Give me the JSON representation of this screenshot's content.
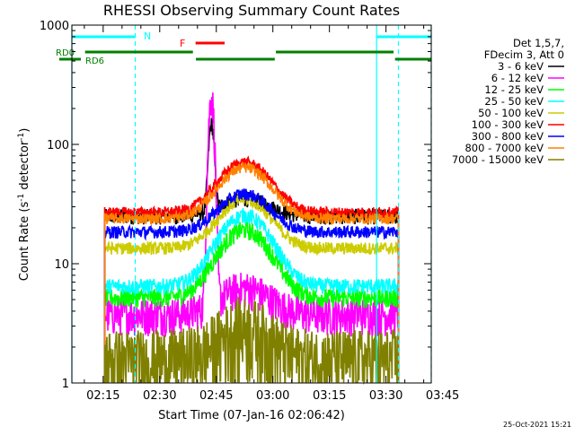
{
  "chart_data": {
    "type": "line",
    "title": "RHESSI Observing Summary Count Rates",
    "xlabel": "Start Time (07-Jan-16 02:06:42)",
    "ylabel_main": "Count Rate (s",
    "ylabel_sup1": "-1",
    "ylabel_mid": " detector",
    "ylabel_sup2": "-1",
    "ylabel_end": ")",
    "yscale": "log",
    "ylim": [
      1,
      1000
    ],
    "xlim_minutes": [
      6.7,
      102
    ],
    "xtick_minutes": [
      15,
      30,
      45,
      60,
      75,
      90,
      105
    ],
    "xtick_labels": [
      "02:15",
      "02:30",
      "02:45",
      "03:00",
      "03:15",
      "03:30",
      "03:45"
    ],
    "ytick_values": [
      1,
      10,
      100,
      1000
    ],
    "ytick_labels": [
      "1",
      "10",
      "100",
      "1000"
    ],
    "legend_header": [
      "Det 1,5,7,",
      "FDecim 3, Att 0"
    ],
    "series": [
      {
        "name": "3 - 6 keV",
        "color": "#000000",
        "base": 25,
        "flare": 10,
        "spike": 120,
        "noise": 0.05
      },
      {
        "name": "6 - 12 keV",
        "color": "#ff00ff",
        "base": 3.8,
        "flare": 2.5,
        "spike": 250,
        "noise": 0.12
      },
      {
        "name": "12 - 25 keV",
        "color": "#00ff00",
        "base": 5.2,
        "flare": 14,
        "spike": 0,
        "noise": 0.06
      },
      {
        "name": "25 - 50 keV",
        "color": "#00ffff",
        "base": 6.5,
        "flare": 19,
        "spike": 0,
        "noise": 0.05
      },
      {
        "name": "50 - 100 keV",
        "color": "#cccc00",
        "base": 13.5,
        "flare": 21,
        "spike": 0,
        "noise": 0.04
      },
      {
        "name": "100 - 300 keV",
        "color": "#ff0000",
        "base": 27,
        "flare": 44,
        "spike": 0,
        "noise": 0.035
      },
      {
        "name": "300 - 800 keV",
        "color": "#0000ff",
        "base": 18.5,
        "flare": 20,
        "spike": 0,
        "noise": 0.04
      },
      {
        "name": "800 - 7000 keV",
        "color": "#ff8000",
        "base": 24,
        "flare": 40,
        "spike": 0,
        "noise": 0.035
      },
      {
        "name": "7000 - 15000 keV",
        "color": "#808000",
        "base": 1.6,
        "flare": 1.4,
        "spike": 0,
        "noise": 0.25
      }
    ],
    "data_window_minutes": [
      15.4,
      93.3
    ],
    "flare_peak_minute": 52.5,
    "spike_minute": 43.7,
    "annotations": {
      "saa_label": "N",
      "flare_label": "F",
      "rd_label_1": "RD0",
      "rd_label_2": "RD6",
      "night_start_minutes": [
        6.7,
        87.5
      ],
      "night_end_minutes": [
        23.5,
        102
      ],
      "vertical_marker_minutes": [
        6.7,
        23.5,
        87.5,
        93.3,
        102
      ],
      "flare_bar_minutes": [
        39.5,
        47.2
      ],
      "decim_bars_minutes": [
        [
          10.2,
          38.8
        ],
        [
          39.6,
          60.5
        ],
        [
          60.8,
          92.0
        ],
        [
          92.4,
          101.9
        ]
      ]
    },
    "colors": {
      "saa_bar": "#00ffff",
      "flare_bar": "#ff0000",
      "decim_bar": "#008000",
      "axis": "#000000"
    }
  },
  "footer": {
    "date_stamp": "25-Oct-2021 15:21"
  }
}
